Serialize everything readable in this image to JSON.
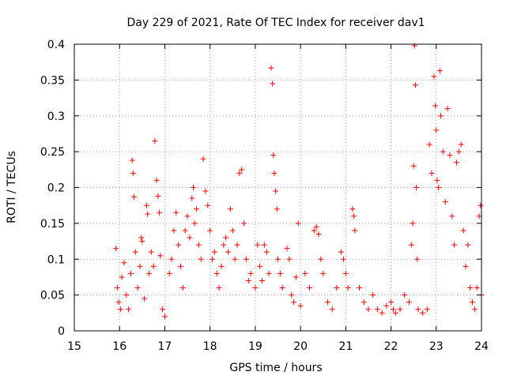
{
  "chart_data": {
    "type": "scatter",
    "title": "Day 229 of 2021, Rate Of TEC Index for receiver dav1",
    "xlabel": "GPS time / hours",
    "ylabel": "ROTI / TECUs",
    "xlim": [
      15,
      24
    ],
    "ylim": [
      0,
      0.4
    ],
    "x_ticks": [
      "15",
      "16",
      "17",
      "18",
      "19",
      "20",
      "21",
      "22",
      "23",
      "24"
    ],
    "y_ticks": [
      "0",
      "0.05",
      "0.1",
      "0.15",
      "0.2",
      "0.25",
      "0.3",
      "0.35",
      "0.4"
    ],
    "grid": true,
    "marker": "+",
    "color": "#ff0000",
    "series": [
      {
        "points": [
          [
            15.92,
            0.115
          ],
          [
            15.95,
            0.06
          ],
          [
            15.98,
            0.04
          ],
          [
            16.02,
            0.03
          ],
          [
            16.05,
            0.075
          ],
          [
            16.1,
            0.095
          ],
          [
            16.15,
            0.05
          ],
          [
            16.2,
            0.03
          ],
          [
            16.25,
            0.08
          ],
          [
            16.28,
            0.238
          ],
          [
            16.3,
            0.22
          ],
          [
            16.32,
            0.187
          ],
          [
            16.35,
            0.11
          ],
          [
            16.4,
            0.06
          ],
          [
            16.45,
            0.09
          ],
          [
            16.48,
            0.13
          ],
          [
            16.5,
            0.125
          ],
          [
            16.55,
            0.045
          ],
          [
            16.6,
            0.175
          ],
          [
            16.62,
            0.163
          ],
          [
            16.65,
            0.08
          ],
          [
            16.7,
            0.11
          ],
          [
            16.75,
            0.09
          ],
          [
            16.78,
            0.265
          ],
          [
            16.82,
            0.21
          ],
          [
            16.85,
            0.188
          ],
          [
            16.88,
            0.165
          ],
          [
            16.9,
            0.105
          ],
          [
            16.95,
            0.03
          ],
          [
            17.0,
            0.02
          ],
          [
            17.1,
            0.08
          ],
          [
            17.15,
            0.1
          ],
          [
            17.2,
            0.14
          ],
          [
            17.25,
            0.165
          ],
          [
            17.3,
            0.12
          ],
          [
            17.35,
            0.09
          ],
          [
            17.4,
            0.06
          ],
          [
            17.45,
            0.14
          ],
          [
            17.5,
            0.16
          ],
          [
            17.55,
            0.13
          ],
          [
            17.6,
            0.185
          ],
          [
            17.63,
            0.2
          ],
          [
            17.66,
            0.15
          ],
          [
            17.7,
            0.17
          ],
          [
            17.75,
            0.12
          ],
          [
            17.8,
            0.1
          ],
          [
            17.85,
            0.24
          ],
          [
            17.9,
            0.195
          ],
          [
            17.95,
            0.175
          ],
          [
            18.0,
            0.14
          ],
          [
            18.05,
            0.1
          ],
          [
            18.1,
            0.11
          ],
          [
            18.15,
            0.08
          ],
          [
            18.2,
            0.06
          ],
          [
            18.25,
            0.09
          ],
          [
            18.3,
            0.12
          ],
          [
            18.35,
            0.13
          ],
          [
            18.4,
            0.11
          ],
          [
            18.45,
            0.17
          ],
          [
            18.5,
            0.14
          ],
          [
            18.55,
            0.1
          ],
          [
            18.6,
            0.12
          ],
          [
            18.65,
            0.22
          ],
          [
            18.7,
            0.225
          ],
          [
            18.75,
            0.15
          ],
          [
            18.8,
            0.1
          ],
          [
            18.85,
            0.07
          ],
          [
            18.9,
            0.08
          ],
          [
            19.0,
            0.06
          ],
          [
            19.05,
            0.12
          ],
          [
            19.1,
            0.09
          ],
          [
            19.15,
            0.07
          ],
          [
            19.2,
            0.12
          ],
          [
            19.25,
            0.11
          ],
          [
            19.3,
            0.08
          ],
          [
            19.35,
            0.367
          ],
          [
            19.38,
            0.345
          ],
          [
            19.4,
            0.245
          ],
          [
            19.42,
            0.22
          ],
          [
            19.45,
            0.195
          ],
          [
            19.48,
            0.17
          ],
          [
            19.5,
            0.1
          ],
          [
            19.55,
            0.08
          ],
          [
            19.6,
            0.06
          ],
          [
            19.7,
            0.115
          ],
          [
            19.75,
            0.1
          ],
          [
            19.8,
            0.05
          ],
          [
            19.85,
            0.04
          ],
          [
            19.9,
            0.075
          ],
          [
            19.95,
            0.15
          ],
          [
            20.0,
            0.035
          ],
          [
            20.1,
            0.08
          ],
          [
            20.2,
            0.06
          ],
          [
            20.3,
            0.14
          ],
          [
            20.35,
            0.145
          ],
          [
            20.4,
            0.135
          ],
          [
            20.45,
            0.1
          ],
          [
            20.5,
            0.08
          ],
          [
            20.6,
            0.04
          ],
          [
            20.7,
            0.03
          ],
          [
            20.8,
            0.06
          ],
          [
            20.9,
            0.11
          ],
          [
            20.95,
            0.1
          ],
          [
            21.0,
            0.08
          ],
          [
            21.05,
            0.06
          ],
          [
            21.15,
            0.17
          ],
          [
            21.18,
            0.16
          ],
          [
            21.2,
            0.14
          ],
          [
            21.3,
            0.06
          ],
          [
            21.4,
            0.04
          ],
          [
            21.5,
            0.03
          ],
          [
            21.6,
            0.05
          ],
          [
            21.7,
            0.03
          ],
          [
            21.8,
            0.025
          ],
          [
            21.9,
            0.035
          ],
          [
            22.0,
            0.04
          ],
          [
            22.05,
            0.03
          ],
          [
            22.1,
            0.025
          ],
          [
            22.2,
            0.03
          ],
          [
            22.3,
            0.05
          ],
          [
            22.4,
            0.04
          ],
          [
            22.45,
            0.12
          ],
          [
            22.48,
            0.15
          ],
          [
            22.5,
            0.23
          ],
          [
            22.52,
            0.398
          ],
          [
            22.54,
            0.343
          ],
          [
            22.56,
            0.2
          ],
          [
            22.58,
            0.1
          ],
          [
            22.6,
            0.03
          ],
          [
            22.7,
            0.025
          ],
          [
            22.8,
            0.03
          ],
          [
            22.85,
            0.26
          ],
          [
            22.9,
            0.22
          ],
          [
            22.95,
            0.355
          ],
          [
            22.98,
            0.314
          ],
          [
            23.0,
            0.28
          ],
          [
            23.02,
            0.21
          ],
          [
            23.05,
            0.2
          ],
          [
            23.08,
            0.363
          ],
          [
            23.1,
            0.3
          ],
          [
            23.15,
            0.25
          ],
          [
            23.2,
            0.18
          ],
          [
            23.25,
            0.31
          ],
          [
            23.3,
            0.245
          ],
          [
            23.35,
            0.16
          ],
          [
            23.4,
            0.12
          ],
          [
            23.45,
            0.235
          ],
          [
            23.5,
            0.25
          ],
          [
            23.55,
            0.26
          ],
          [
            23.6,
            0.14
          ],
          [
            23.65,
            0.09
          ],
          [
            23.7,
            0.12
          ],
          [
            23.75,
            0.06
          ],
          [
            23.8,
            0.04
          ],
          [
            23.85,
            0.03
          ],
          [
            23.9,
            0.06
          ],
          [
            23.95,
            0.16
          ],
          [
            23.98,
            0.175
          ],
          [
            24.0,
            0.05
          ]
        ]
      }
    ]
  }
}
